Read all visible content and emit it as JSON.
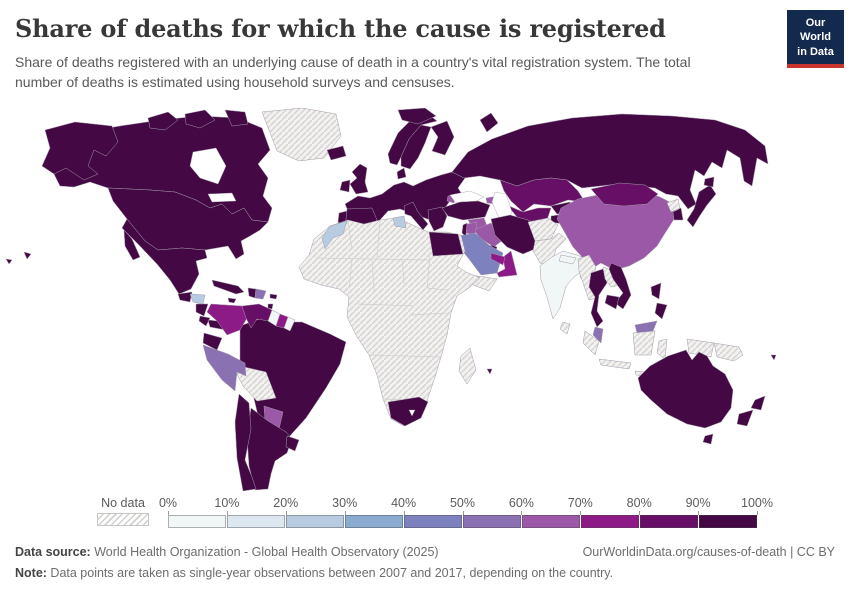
{
  "header": {
    "title": "Share of deaths for which the cause is registered",
    "subtitle": "Share of deaths registered with an underlying cause of death in a country's vital registration system. The total number of deaths is estimated using household surveys and censuses.",
    "logo": {
      "line1": "Our World",
      "line2": "in Data",
      "bg_color": "#13294d",
      "accent_color": "#c9352c"
    }
  },
  "legend": {
    "no_data_label": "No data",
    "tick_labels": [
      "0%",
      "10%",
      "20%",
      "30%",
      "40%",
      "50%",
      "60%",
      "70%",
      "80%",
      "90%",
      "100%"
    ],
    "bins": [
      {
        "range": "0-10",
        "color": "#f1f6f6"
      },
      {
        "range": "10-20",
        "color": "#dde7f0"
      },
      {
        "range": "20-30",
        "color": "#b7cce1"
      },
      {
        "range": "30-40",
        "color": "#8cabd1"
      },
      {
        "range": "40-50",
        "color": "#7d82be"
      },
      {
        "range": "50-60",
        "color": "#8a71b2"
      },
      {
        "range": "60-70",
        "color": "#9a58a6"
      },
      {
        "range": "70-80",
        "color": "#8c1a87"
      },
      {
        "range": "80-90",
        "color": "#670e66"
      },
      {
        "range": "90-100",
        "color": "#440845"
      }
    ]
  },
  "footer": {
    "datasource_label": "Data source:",
    "datasource_text": " World Health Organization - Global Health Observatory (2025)",
    "attribution": "OurWorldinData.org/causes-of-death | CC BY",
    "note_label": "Note:",
    "note_text": " Data points are taken as single-year observations between 2007 and 2017, depending on the country."
  },
  "chart_data": {
    "type": "choropleth",
    "title": "Share of deaths for which the cause is registered",
    "unit": "% of deaths, binned in 10-point ranges",
    "no_data_label": "No data",
    "legend_range": [
      "0%",
      "100%"
    ],
    "countries": {
      "United States": "90-100",
      "Canada": "90-100",
      "Mexico": "90-100",
      "Guatemala": "90-100",
      "Honduras": "20-30",
      "Nicaragua": "90-100",
      "Costa Rica": "90-100",
      "Panama": "90-100",
      "Cuba": "90-100",
      "Haiti": "90-100",
      "Dominican Republic": "50-60",
      "Jamaica": "90-100",
      "Puerto Rico": "90-100",
      "Trinidad and Tobago": "90-100",
      "Colombia": "70-80",
      "Venezuela": "80-90",
      "Guyana": "0-10",
      "Suriname": "70-80",
      "French Guiana": "0-10",
      "Ecuador": "90-100",
      "Peru": "50-60",
      "Bolivia": "no-data",
      "Brazil": "90-100",
      "Paraguay": "60-70",
      "Uruguay": "90-100",
      "Argentina": "90-100",
      "Chile": "90-100",
      "Iceland": "90-100",
      "United Kingdom": "90-100",
      "Ireland": "90-100",
      "Norway": "90-100",
      "Sweden": "90-100",
      "Finland": "90-100",
      "Denmark": "90-100",
      "France": "90-100",
      "Germany": "90-100",
      "Poland": "90-100",
      "Ukraine": "90-100",
      "Romania": "90-100",
      "Spain": "90-100",
      "Portugal": "90-100",
      "Italy": "90-100",
      "Greece": "90-100",
      "Moldova": "60-70",
      "Russia": "90-100",
      "Turkey": "90-100",
      "Georgia": "60-70",
      "Azerbaijan": "60-70",
      "Syria": "60-70",
      "Iraq": "60-70",
      "Jordan": "60-70",
      "Israel": "90-100",
      "Kuwait": "90-100",
      "Saudi Arabia": "40-50",
      "Yemen": "no-data",
      "Oman": "70-80",
      "United Arab Emirates": "70-80",
      "Iran": "90-100",
      "Kazakhstan": "80-90",
      "Uzbekistan": "80-90",
      "Turkmenistan": "80-90",
      "Kyrgyzstan": "90-100",
      "Tajikistan": "90-100",
      "Afghanistan": "no-data",
      "Pakistan": "no-data",
      "India": "0-10",
      "Nepal": "0-10",
      "Bangladesh": "0-10",
      "Sri Lanka": "no-data",
      "China": "60-70",
      "Mongolia": "80-90",
      "North Korea": "no-data",
      "South Korea": "90-100",
      "Japan": "90-100",
      "Myanmar": "no-data",
      "Thailand": "90-100",
      "Laos": "no-data",
      "Vietnam": "90-100",
      "Cambodia": "90-100",
      "Malaysia": "50-60",
      "Indonesia": "no-data",
      "Philippines": "90-100",
      "Papua New Guinea": "no-data",
      "Morocco": "20-30",
      "Tunisia": "20-30",
      "Egypt": "90-100",
      "Algeria": "no-data",
      "Libya": "no-data",
      "Mauritania": "no-data",
      "Mali": "no-data",
      "Niger": "no-data",
      "Chad": "no-data",
      "Sudan": "no-data",
      "Nigeria": "no-data",
      "Ethiopia": "no-data",
      "Somalia": "no-data",
      "Kenya": "no-data",
      "Tanzania": "no-data",
      "Democratic Republic of Congo": "no-data",
      "Angola": "no-data",
      "Zambia": "no-data",
      "Mozambique": "no-data",
      "Zimbabwe": "no-data",
      "Namibia": "no-data",
      "Botswana": "no-data",
      "South Africa": "90-100",
      "Madagascar": "no-data",
      "Mauritius": "90-100",
      "Greenland": "no-data",
      "Australia": "90-100",
      "New Zealand": "90-100",
      "Fiji": "90-100"
    }
  }
}
